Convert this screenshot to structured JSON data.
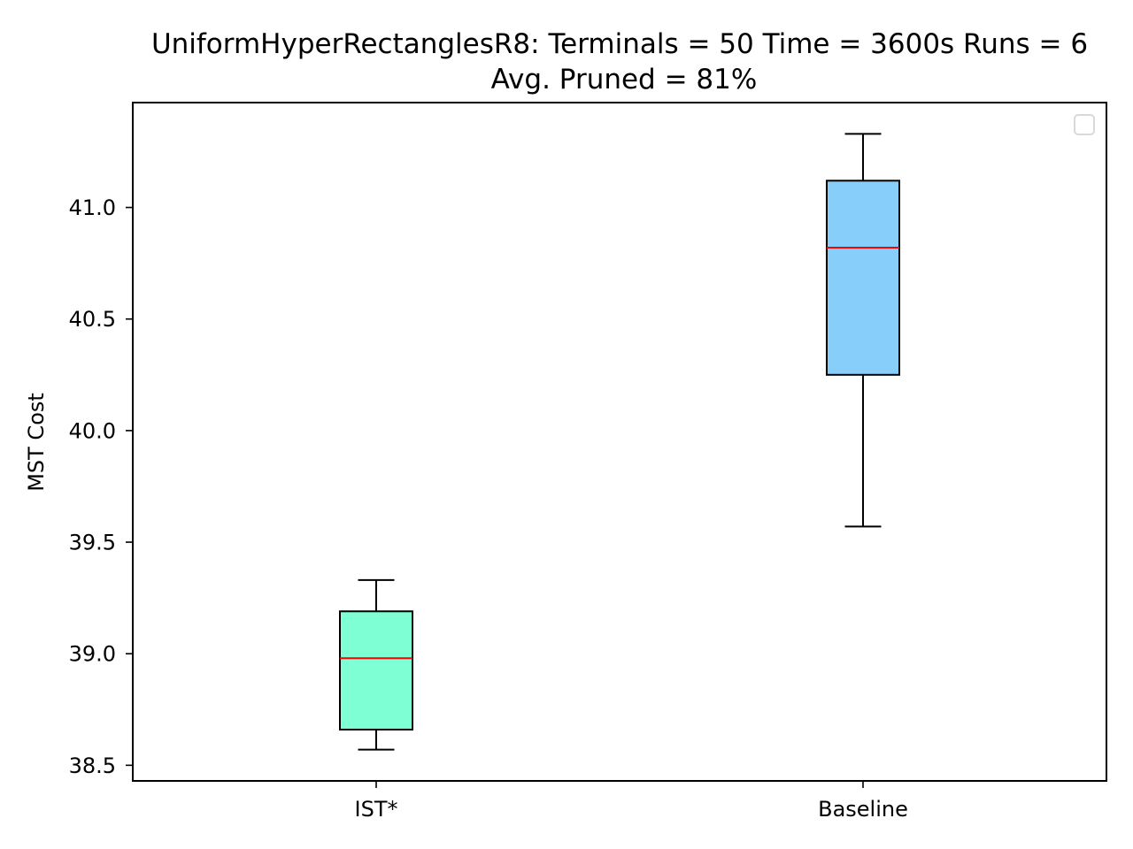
{
  "chart_data": {
    "type": "box",
    "title": "UniformHyperRectanglesR8:  Terminals = 50  Time = 3600s  Runs = 6",
    "subtitle": "Avg. Pruned = 81%",
    "xlabel": "",
    "ylabel": "MST Cost",
    "ylim": [
      38.43,
      41.47
    ],
    "yticks": [
      38.5,
      39.0,
      39.5,
      40.0,
      40.5,
      41.0
    ],
    "ytick_labels": [
      "38.5",
      "39.0",
      "39.5",
      "40.0",
      "40.5",
      "41.0"
    ],
    "categories": [
      "IST*",
      "Baseline"
    ],
    "boxes": [
      {
        "category": "IST*",
        "whisker_low": 38.57,
        "q1": 38.66,
        "median": 38.98,
        "q3": 39.19,
        "whisker_high": 39.33,
        "fill": "#7fffd4"
      },
      {
        "category": "Baseline",
        "whisker_low": 39.57,
        "q1": 40.25,
        "median": 40.82,
        "q3": 41.12,
        "whisker_high": 41.33,
        "fill": "#87cefa"
      }
    ],
    "median_color": "#ff0000",
    "grid": false,
    "legend": {
      "position": "upper right",
      "entries": []
    }
  }
}
